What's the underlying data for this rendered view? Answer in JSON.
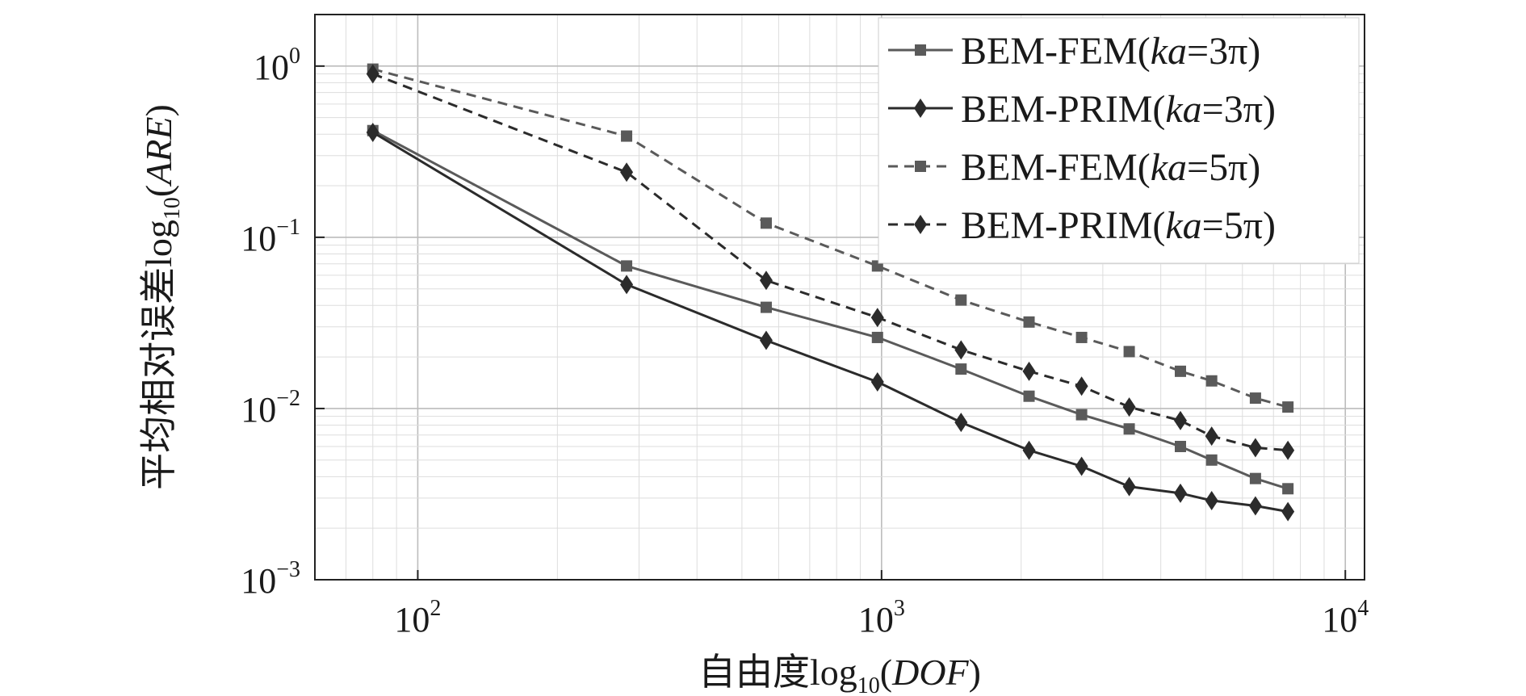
{
  "chart_data": {
    "type": "line",
    "xscale": "log",
    "yscale": "log",
    "xlim": [
      60,
      11000
    ],
    "ylim": [
      0.001,
      2
    ],
    "grid": true,
    "legend_position": "top-right",
    "xlabel": {
      "main": "自由度log",
      "sub": "10",
      "open": "(",
      "var": "DOF",
      "close": ")"
    },
    "ylabel": {
      "main": "平均相对误差log",
      "sub": "10",
      "open": "(",
      "var": "ARE",
      "close": ")"
    },
    "xticks": [
      {
        "value": 100,
        "base": "10",
        "exp": "2"
      },
      {
        "value": 1000,
        "base": "10",
        "exp": "3"
      },
      {
        "value": 10000,
        "base": "10",
        "exp": "4"
      }
    ],
    "yticks": [
      {
        "value": 1,
        "base": "10",
        "exp": "0"
      },
      {
        "value": 0.1,
        "base": "10",
        "exp": "−1"
      },
      {
        "value": 0.01,
        "base": "10",
        "exp": "−2"
      },
      {
        "value": 0.001,
        "base": "10",
        "exp": "−3"
      }
    ],
    "series": [
      {
        "name": {
          "pre": "BEM-FEM(",
          "var": "ka",
          "post": "=3π)"
        },
        "color": "#5a5a5a",
        "marker": "square",
        "dash": "solid",
        "x": [
          80,
          282,
          564,
          980,
          1484,
          2080,
          2700,
          3420,
          4410,
          5150,
          6400,
          7520
        ],
        "y": [
          0.42,
          0.068,
          0.039,
          0.026,
          0.017,
          0.0118,
          0.0092,
          0.0076,
          0.006,
          0.005,
          0.0039,
          0.0034
        ]
      },
      {
        "name": {
          "pre": "BEM-PRIM(",
          "var": "ka",
          "post": "=3π)"
        },
        "color": "#2b2b2b",
        "marker": "diamond",
        "dash": "solid",
        "x": [
          80,
          282,
          564,
          980,
          1484,
          2080,
          2700,
          3420,
          4410,
          5150,
          6400,
          7520
        ],
        "y": [
          0.41,
          0.053,
          0.025,
          0.0143,
          0.0083,
          0.0057,
          0.0046,
          0.0035,
          0.0032,
          0.0029,
          0.0027,
          0.0025
        ]
      },
      {
        "name": {
          "pre": "BEM-FEM(",
          "var": "ka",
          "post": "=5π)"
        },
        "color": "#5a5a5a",
        "marker": "square",
        "dash": "dashed",
        "x": [
          80,
          282,
          564,
          980,
          1484,
          2080,
          2700,
          3420,
          4410,
          5150,
          6400,
          7520
        ],
        "y": [
          0.96,
          0.39,
          0.121,
          0.068,
          0.043,
          0.032,
          0.026,
          0.0215,
          0.0165,
          0.0145,
          0.0115,
          0.0102
        ]
      },
      {
        "name": {
          "pre": "BEM-PRIM(",
          "var": "ka",
          "post": "=5π)"
        },
        "color": "#2b2b2b",
        "marker": "diamond",
        "dash": "dashed",
        "x": [
          80,
          282,
          564,
          980,
          1484,
          2080,
          2700,
          3420,
          4410,
          5150,
          6400,
          7520
        ],
        "y": [
          0.9,
          0.24,
          0.056,
          0.034,
          0.022,
          0.0165,
          0.0135,
          0.0102,
          0.0085,
          0.0069,
          0.0059,
          0.0057
        ]
      }
    ]
  }
}
